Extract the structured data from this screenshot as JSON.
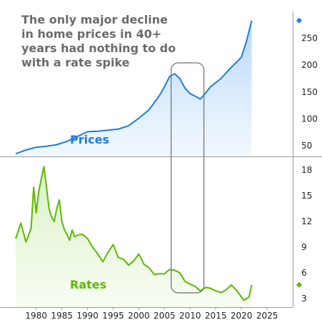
{
  "chart_data": [
    {
      "type": "area",
      "title": "The only major decline in home prices in 40+ years had nothing to do with a rate spike",
      "series": [
        {
          "name": "Prices",
          "color": "#1f7de0",
          "x": [
            1976,
            1978,
            1980,
            1982,
            1984,
            1986,
            1988,
            1990,
            1992,
            1994,
            1996,
            1998,
            2000,
            2002,
            2004,
            2005,
            2006,
            2007,
            2008,
            2009,
            2010,
            2011,
            2012,
            2013,
            2014,
            2016,
            2018,
            2019,
            2020,
            2021,
            2022
          ],
          "values": [
            35,
            42,
            47,
            49,
            52,
            58,
            67,
            76,
            77,
            79,
            81,
            87,
            101,
            117,
            143,
            160,
            179,
            184,
            175,
            157,
            147,
            142,
            137,
            148,
            160,
            175,
            196,
            205,
            215,
            245,
            283
          ]
        }
      ],
      "ylim": [
        30,
        300
      ],
      "yticks": [
        "50",
        "100",
        "150",
        "200",
        "250"
      ],
      "last_value_marker": 283
    },
    {
      "type": "area",
      "series": [
        {
          "name": "Rates",
          "color": "#5cb800",
          "x": [
            1976,
            1977,
            1978,
            1979,
            1979.5,
            1980,
            1980.5,
            1981,
            1981.5,
            1982,
            1982.5,
            1983,
            1983.5,
            1984,
            1984.5,
            1985,
            1985.5,
            1986,
            1986.5,
            1987,
            1987.5,
            1988,
            1989,
            1990,
            1991,
            1992,
            1993,
            1994,
            1995,
            1996,
            1997,
            1998,
            1999,
            2000,
            2001,
            2002,
            2003,
            2004,
            2005,
            2006,
            2007,
            2008,
            2009,
            2010,
            2011,
            2012,
            2013,
            2014,
            2015,
            2016,
            2017,
            2018,
            2019,
            2020,
            2020.5,
            2021,
            2021.5,
            2022
          ],
          "values": [
            10.0,
            11.8,
            9.6,
            11.2,
            16.0,
            13.0,
            15.5,
            17.0,
            18.4,
            16.0,
            13.5,
            12.5,
            12.0,
            13.5,
            14.5,
            12.0,
            11.0,
            10.5,
            9.8,
            11.0,
            10.2,
            10.4,
            10.5,
            10.0,
            9.0,
            8.2,
            7.3,
            8.4,
            9.3,
            7.8,
            7.6,
            6.9,
            7.4,
            8.2,
            7.0,
            6.6,
            5.8,
            5.9,
            5.9,
            6.4,
            6.3,
            6.0,
            5.0,
            4.7,
            4.4,
            3.9,
            4.3,
            4.2,
            3.9,
            3.7,
            4.0,
            4.6,
            4.0,
            3.2,
            2.8,
            3.0,
            3.2,
            4.6
          ],
          "start_year_label_context": "1976"
        }
      ],
      "ylim": [
        2.0,
        19.5
      ],
      "yticks": [
        "3",
        "6",
        "9",
        "12",
        "15",
        "18"
      ],
      "last_value_marker": 4.6
    }
  ],
  "xaxis": {
    "xlim": [
      1976,
      2030
    ],
    "ticks": [
      "1980",
      "1985",
      "1990",
      "1995",
      "2000",
      "2005",
      "2010",
      "2015",
      "2020",
      "2025"
    ]
  },
  "annotation": {
    "highlight_range": [
      2007,
      2012
    ],
    "headline": "The only major decline in home prices in 40+ years had nothing to do with a rate spike"
  },
  "colors": {
    "prices": "#1f7de0",
    "rates": "#5cb800",
    "headline": "#6b6b6b",
    "axis": "#9a9a9a"
  }
}
